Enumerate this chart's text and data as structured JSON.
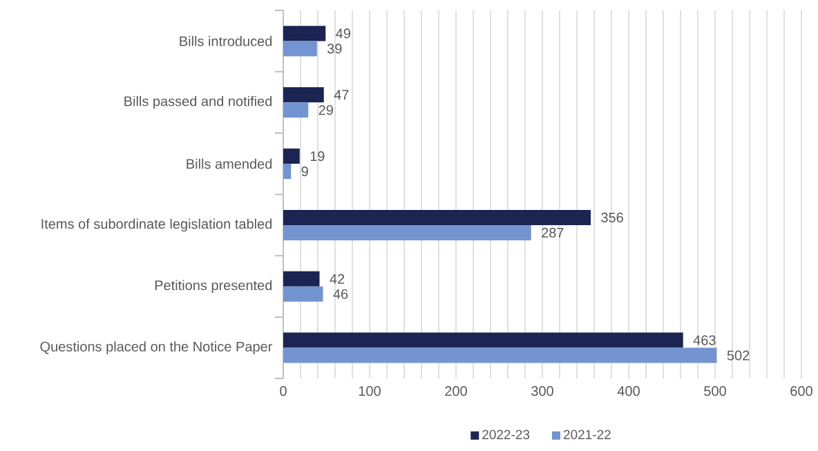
{
  "chart_data": {
    "type": "bar",
    "orientation": "horizontal",
    "categories": [
      "Bills introduced",
      "Bills passed and notified",
      "Bills amended",
      "Items of subordinate legislation tabled",
      "Petitions presented",
      "Questions placed on the Notice Paper"
    ],
    "series": [
      {
        "name": "2022-23",
        "color": "#1b2452",
        "values": [
          49,
          47,
          19,
          356,
          42,
          463
        ]
      },
      {
        "name": "2021-22",
        "color": "#7394d0",
        "values": [
          39,
          29,
          9,
          287,
          46,
          502
        ]
      }
    ],
    "xlim": [
      0,
      600
    ],
    "xticks": [
      0,
      {
        "value": 20,
        "label": null
      },
      {
        "value": 40,
        "label": null
      },
      {
        "value": 60,
        "label": null
      },
      {
        "value": 80,
        "label": null
      },
      100,
      {
        "value": 120,
        "label": null
      },
      {
        "value": 140,
        "label": null
      },
      {
        "value": 160,
        "label": null
      },
      {
        "value": 180,
        "label": null
      },
      200,
      {
        "value": 220,
        "label": null
      },
      {
        "value": 240,
        "label": null
      },
      {
        "value": 260,
        "label": null
      },
      {
        "value": 280,
        "label": null
      },
      300,
      {
        "value": 320,
        "label": null
      },
      {
        "value": 340,
        "label": null
      },
      {
        "value": 360,
        "label": null
      },
      {
        "value": 380,
        "label": null
      },
      400,
      {
        "value": 420,
        "label": null
      },
      {
        "value": 440,
        "label": null
      },
      {
        "value": 460,
        "label": null
      },
      {
        "value": 480,
        "label": null
      },
      500,
      {
        "value": 520,
        "label": null
      },
      {
        "value": 540,
        "label": null
      },
      {
        "value": 560,
        "label": null
      },
      {
        "value": 580,
        "label": null
      },
      600
    ],
    "grid": "x",
    "legend": "bottom",
    "data_labels": true
  }
}
